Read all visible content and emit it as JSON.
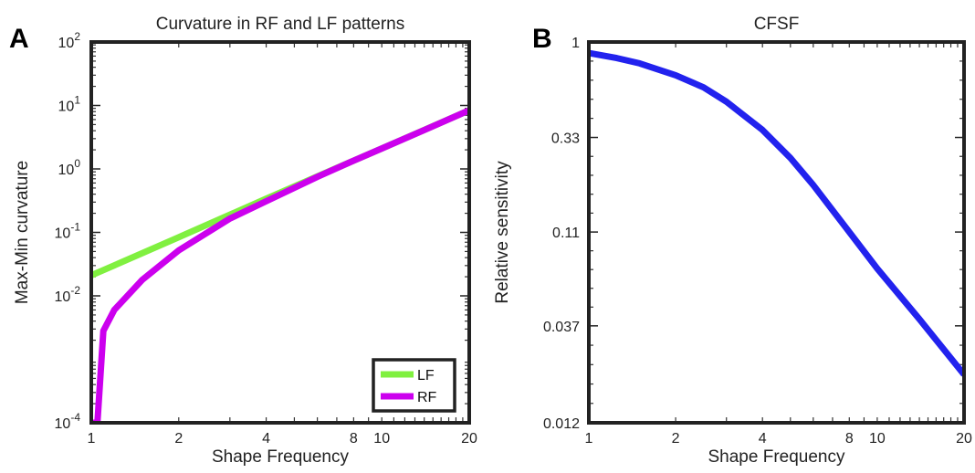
{
  "chart_data": [
    {
      "panel": "A",
      "type": "line",
      "title": "Curvature in RF and LF patterns",
      "xlabel": "Shape Frequency",
      "ylabel": "Max-Min curvature",
      "xscale": "log",
      "yscale": "log",
      "xlim": [
        1,
        20
      ],
      "ylim": [
        0.0001,
        100
      ],
      "xticks": [
        {
          "v": 1,
          "label": "1"
        },
        {
          "v": 2,
          "label": "2"
        },
        {
          "v": 4,
          "label": "4"
        },
        {
          "v": 8,
          "label": "8"
        },
        {
          "v": 10,
          "label": "10"
        },
        {
          "v": 20,
          "label": "20"
        }
      ],
      "yticks": [
        {
          "v": 0.0001,
          "base": "10",
          "exp": "-4"
        },
        {
          "v": 0.01,
          "base": "10",
          "exp": "-2"
        },
        {
          "v": 0.1,
          "base": "10",
          "exp": "-1"
        },
        {
          "v": 1,
          "base": "10",
          "exp": "0"
        },
        {
          "v": 10,
          "base": "10",
          "exp": "1"
        },
        {
          "v": 100,
          "base": "10",
          "exp": "2"
        }
      ],
      "grid": false,
      "legend": "bottom-right",
      "series": [
        {
          "name": "LF",
          "color": "#80f040",
          "x": [
            1,
            2,
            4,
            8,
            10,
            20
          ],
          "y": [
            0.021,
            0.084,
            0.34,
            1.35,
            2.1,
            8.4
          ]
        },
        {
          "name": "RF",
          "color": "#cc00ee",
          "x": [
            1,
            1.05,
            1.1,
            1.2,
            1.5,
            2,
            3,
            4,
            6,
            8,
            10,
            14,
            20
          ],
          "y": [
            0.0001,
            0.0001,
            0.0028,
            0.006,
            0.018,
            0.052,
            0.165,
            0.31,
            0.75,
            1.35,
            2.1,
            4.1,
            8.4
          ]
        }
      ]
    },
    {
      "panel": "B",
      "type": "line",
      "title": "CFSF",
      "xlabel": "Shape Frequency",
      "ylabel": "Relative sensitivity",
      "xscale": "log",
      "yscale": "log",
      "xlim": [
        1,
        20
      ],
      "ylim": [
        0.012,
        1
      ],
      "xticks": [
        {
          "v": 1,
          "label": "1"
        },
        {
          "v": 2,
          "label": "2"
        },
        {
          "v": 4,
          "label": "4"
        },
        {
          "v": 8,
          "label": "8"
        },
        {
          "v": 10,
          "label": "10"
        },
        {
          "v": 20,
          "label": "20"
        }
      ],
      "yticks": [
        {
          "v": 0.012,
          "label": "0.012"
        },
        {
          "v": 0.037,
          "label": "0.037"
        },
        {
          "v": 0.11,
          "label": "0.11"
        },
        {
          "v": 0.33,
          "label": "0.33"
        },
        {
          "v": 1,
          "label": "1"
        }
      ],
      "grid": false,
      "series": [
        {
          "color": "#2222ee",
          "x": [
            1,
            1.25,
            1.5,
            2,
            2.5,
            3,
            4,
            5,
            6,
            8,
            10,
            14,
            20
          ],
          "y": [
            0.88,
            0.83,
            0.78,
            0.68,
            0.59,
            0.5,
            0.36,
            0.26,
            0.19,
            0.11,
            0.072,
            0.04,
            0.021
          ]
        }
      ]
    }
  ]
}
